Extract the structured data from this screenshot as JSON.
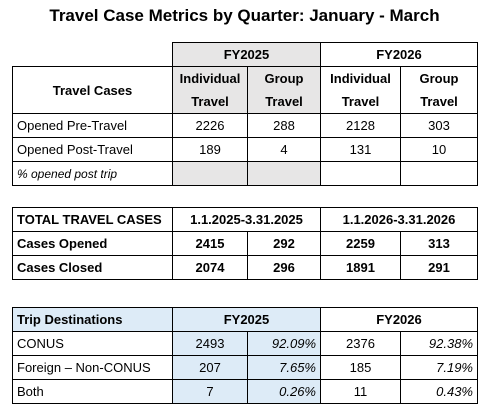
{
  "title": "Travel Case Metrics by Quarter: January - March",
  "table1": {
    "corner": "Travel Cases",
    "groups": [
      "FY2025",
      "FY2026"
    ],
    "columns": [
      "Individual Travel",
      "Group Travel",
      "Individual Travel",
      "Group Travel"
    ],
    "rows": [
      [
        "Opened Pre-Travel",
        "2226",
        "288",
        "2128",
        "303"
      ],
      [
        "Opened Post-Travel",
        "189",
        "4",
        "131",
        "10"
      ],
      [
        "% opened post trip"
      ]
    ]
  },
  "table2": {
    "header": [
      "TOTAL TRAVEL CASES",
      "1.1.2025-3.31.2025",
      "1.1.2026-3.31.2026"
    ],
    "rows": [
      [
        "Cases Opened",
        "2415",
        "292",
        "2259",
        "313"
      ],
      [
        "Cases Closed",
        "2074",
        "296",
        "1891",
        "291"
      ]
    ]
  },
  "table3": {
    "header": [
      "Trip Destinations",
      "FY2025",
      "FY2026"
    ],
    "rows": [
      [
        "CONUS",
        "2493",
        "92.09%",
        "2376",
        "92.38%"
      ],
      [
        "Foreign – Non-CONUS",
        "207",
        "7.65%",
        "185",
        "7.19%"
      ],
      [
        "Both",
        "7",
        "0.26%",
        "11",
        "0.43%"
      ]
    ]
  }
}
